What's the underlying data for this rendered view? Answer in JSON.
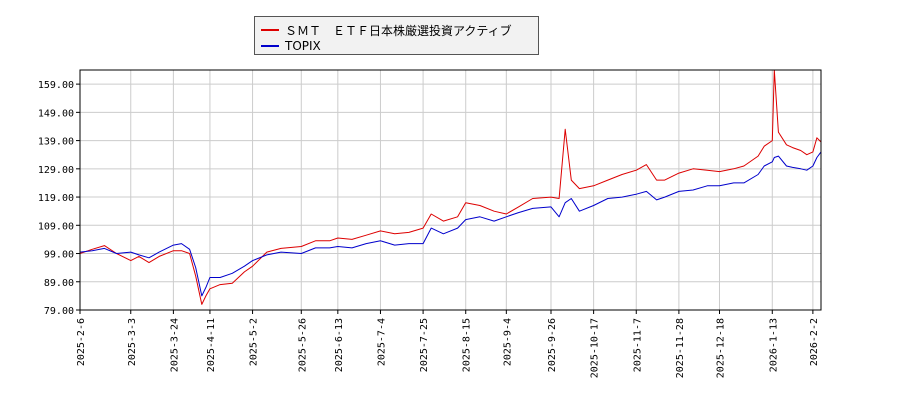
{
  "chart_data": {
    "type": "line",
    "legend_position": "top-center",
    "grid": true,
    "ylim": [
      79.0,
      164.0
    ],
    "y_ticks": [
      "79.00",
      "89.00",
      "99.00",
      "109.00",
      "119.00",
      "129.00",
      "139.00",
      "149.00",
      "159.00"
    ],
    "x_ticks": [
      "2025-2-6",
      "2025-3-3",
      "2025-3-24",
      "2025-4-11",
      "2025-5-2",
      "2025-5-26",
      "2025-6-13",
      "2025-7-4",
      "2025-7-25",
      "2025-8-15",
      "2025-9-4",
      "2025-9-26",
      "2025-10-17",
      "2025-11-7",
      "2025-11-28",
      "2025-12-18",
      "2026-1-13",
      "2026-2-2"
    ],
    "series": [
      {
        "name": "ＳＭＴ　ＥＴＦ日本株厳選投資アクティブ",
        "color": "#dd0000",
        "points": [
          [
            "2025-2-6",
            99.0
          ],
          [
            "2025-2-12",
            100.5
          ],
          [
            "2025-2-18",
            101.8
          ],
          [
            "2025-2-24",
            99.0
          ],
          [
            "2025-3-3",
            96.5
          ],
          [
            "2025-3-7",
            98.0
          ],
          [
            "2025-3-12",
            95.8
          ],
          [
            "2025-3-17",
            98.0
          ],
          [
            "2025-3-24",
            100.0
          ],
          [
            "2025-3-28",
            100.0
          ],
          [
            "2025-4-1",
            99.0
          ],
          [
            "2025-4-4",
            91.0
          ],
          [
            "2025-4-7",
            81.0
          ],
          [
            "2025-4-9",
            84.0
          ],
          [
            "2025-4-11",
            86.5
          ],
          [
            "2025-4-16",
            88.0
          ],
          [
            "2025-4-22",
            88.5
          ],
          [
            "2025-4-28",
            92.5
          ],
          [
            "2025-5-2",
            94.5
          ],
          [
            "2025-5-9",
            99.5
          ],
          [
            "2025-5-16",
            100.8
          ],
          [
            "2025-5-26",
            101.5
          ],
          [
            "2025-6-2",
            103.5
          ],
          [
            "2025-6-9",
            103.5
          ],
          [
            "2025-6-13",
            104.5
          ],
          [
            "2025-6-20",
            104.0
          ],
          [
            "2025-6-27",
            105.5
          ],
          [
            "2025-7-4",
            107.0
          ],
          [
            "2025-7-11",
            106.0
          ],
          [
            "2025-7-18",
            106.5
          ],
          [
            "2025-7-25",
            108.0
          ],
          [
            "2025-7-29",
            113.0
          ],
          [
            "2025-8-4",
            110.5
          ],
          [
            "2025-8-11",
            112.0
          ],
          [
            "2025-8-15",
            117.0
          ],
          [
            "2025-8-22",
            116.0
          ],
          [
            "2025-8-29",
            114.0
          ],
          [
            "2025-9-4",
            113.0
          ],
          [
            "2025-9-10",
            115.5
          ],
          [
            "2025-9-17",
            118.5
          ],
          [
            "2025-9-26",
            119.0
          ],
          [
            "2025-9-30",
            118.5
          ],
          [
            "2025-10-3",
            143.0
          ],
          [
            "2025-10-6",
            125.0
          ],
          [
            "2025-10-10",
            122.0
          ],
          [
            "2025-10-17",
            123.0
          ],
          [
            "2025-10-24",
            125.0
          ],
          [
            "2025-10-31",
            127.0
          ],
          [
            "2025-11-7",
            128.5
          ],
          [
            "2025-11-12",
            130.5
          ],
          [
            "2025-11-17",
            125.0
          ],
          [
            "2025-11-21",
            125.0
          ],
          [
            "2025-11-28",
            127.5
          ],
          [
            "2025-12-5",
            129.0
          ],
          [
            "2025-12-12",
            128.5
          ],
          [
            "2025-12-18",
            128.0
          ],
          [
            "2025-12-25",
            129.0
          ],
          [
            "2025-12-30",
            130.0
          ],
          [
            "2026-1-6",
            133.5
          ],
          [
            "2026-1-9",
            137.0
          ],
          [
            "2026-1-13",
            139.0
          ],
          [
            "2026-1-14",
            165.0
          ],
          [
            "2026-1-16",
            142.0
          ],
          [
            "2026-1-20",
            137.5
          ],
          [
            "2026-1-23",
            136.5
          ],
          [
            "2026-1-27",
            135.5
          ],
          [
            "2026-1-30",
            134.0
          ],
          [
            "2026-2-2",
            135.0
          ],
          [
            "2026-2-4",
            140.0
          ],
          [
            "2026-2-6",
            138.5
          ]
        ]
      },
      {
        "name": "TOPIX",
        "color": "#0000cc",
        "points": [
          [
            "2025-2-6",
            99.5
          ],
          [
            "2025-2-12",
            100.0
          ],
          [
            "2025-2-18",
            100.8
          ],
          [
            "2025-2-24",
            99.0
          ],
          [
            "2025-3-3",
            99.5
          ],
          [
            "2025-3-7",
            98.5
          ],
          [
            "2025-3-12",
            97.5
          ],
          [
            "2025-3-17",
            99.5
          ],
          [
            "2025-3-24",
            102.0
          ],
          [
            "2025-3-28",
            102.5
          ],
          [
            "2025-4-1",
            100.5
          ],
          [
            "2025-4-4",
            94.0
          ],
          [
            "2025-4-7",
            84.0
          ],
          [
            "2025-4-9",
            87.0
          ],
          [
            "2025-4-11",
            90.5
          ],
          [
            "2025-4-16",
            90.5
          ],
          [
            "2025-4-22",
            92.0
          ],
          [
            "2025-4-28",
            94.5
          ],
          [
            "2025-5-2",
            96.5
          ],
          [
            "2025-5-9",
            98.5
          ],
          [
            "2025-5-16",
            99.5
          ],
          [
            "2025-5-26",
            99.0
          ],
          [
            "2025-6-2",
            101.0
          ],
          [
            "2025-6-9",
            101.0
          ],
          [
            "2025-6-13",
            101.5
          ],
          [
            "2025-6-20",
            101.0
          ],
          [
            "2025-6-27",
            102.5
          ],
          [
            "2025-7-4",
            103.5
          ],
          [
            "2025-7-11",
            102.0
          ],
          [
            "2025-7-18",
            102.5
          ],
          [
            "2025-7-25",
            102.5
          ],
          [
            "2025-7-29",
            108.0
          ],
          [
            "2025-8-4",
            106.0
          ],
          [
            "2025-8-11",
            108.0
          ],
          [
            "2025-8-15",
            111.0
          ],
          [
            "2025-8-22",
            112.0
          ],
          [
            "2025-8-29",
            110.5
          ],
          [
            "2025-9-4",
            112.0
          ],
          [
            "2025-9-10",
            113.5
          ],
          [
            "2025-9-17",
            115.0
          ],
          [
            "2025-9-26",
            115.5
          ],
          [
            "2025-9-30",
            112.0
          ],
          [
            "2025-10-3",
            117.0
          ],
          [
            "2025-10-6",
            118.5
          ],
          [
            "2025-10-10",
            114.0
          ],
          [
            "2025-10-17",
            116.0
          ],
          [
            "2025-10-24",
            118.5
          ],
          [
            "2025-10-31",
            119.0
          ],
          [
            "2025-11-7",
            120.0
          ],
          [
            "2025-11-12",
            121.0
          ],
          [
            "2025-11-17",
            118.0
          ],
          [
            "2025-11-21",
            119.0
          ],
          [
            "2025-11-28",
            121.0
          ],
          [
            "2025-12-5",
            121.5
          ],
          [
            "2025-12-12",
            123.0
          ],
          [
            "2025-12-18",
            123.0
          ],
          [
            "2025-12-25",
            124.0
          ],
          [
            "2025-12-30",
            124.0
          ],
          [
            "2026-1-6",
            127.0
          ],
          [
            "2026-1-9",
            130.0
          ],
          [
            "2026-1-13",
            131.5
          ],
          [
            "2026-1-14",
            133.0
          ],
          [
            "2026-1-16",
            133.5
          ],
          [
            "2026-1-20",
            130.0
          ],
          [
            "2026-1-23",
            129.5
          ],
          [
            "2026-1-27",
            129.0
          ],
          [
            "2026-1-30",
            128.5
          ],
          [
            "2026-2-2",
            130.0
          ],
          [
            "2026-2-4",
            133.0
          ],
          [
            "2026-2-6",
            135.0
          ]
        ]
      }
    ]
  }
}
